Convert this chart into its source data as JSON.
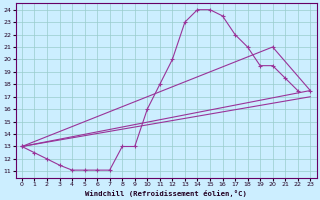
{
  "xlabel": "Windchill (Refroidissement éolien,°C)",
  "background_color": "#cceeff",
  "grid_color": "#99cccc",
  "line_color": "#993399",
  "xlim": [
    -0.5,
    23.5
  ],
  "ylim": [
    10.5,
    24.5
  ],
  "yticks": [
    11,
    12,
    13,
    14,
    15,
    16,
    17,
    18,
    19,
    20,
    21,
    22,
    23,
    24
  ],
  "xticks": [
    0,
    1,
    2,
    3,
    4,
    5,
    6,
    7,
    8,
    9,
    10,
    11,
    12,
    13,
    14,
    15,
    16,
    17,
    18,
    19,
    20,
    21,
    22,
    23
  ],
  "curve1_x": [
    0,
    1,
    2,
    3,
    4,
    5,
    6,
    7,
    8,
    9,
    10,
    11,
    12,
    13,
    14,
    15,
    16,
    17,
    18,
    19,
    20,
    21,
    22
  ],
  "curve1_y": [
    13.0,
    12.5,
    12.0,
    11.5,
    11.1,
    11.1,
    11.1,
    11.1,
    13.0,
    13.0,
    16.0,
    18.0,
    20.0,
    23.0,
    24.0,
    24.0,
    23.5,
    22.0,
    21.0,
    19.5,
    19.5,
    18.5,
    17.5
  ],
  "curve2_x": [
    0,
    20,
    23
  ],
  "curve2_y": [
    13.0,
    21.0,
    17.5
  ],
  "curve3_x": [
    0,
    23
  ],
  "curve3_y": [
    13.0,
    17.5
  ],
  "curve4_x": [
    0,
    23
  ],
  "curve4_y": [
    13.0,
    17.0
  ]
}
